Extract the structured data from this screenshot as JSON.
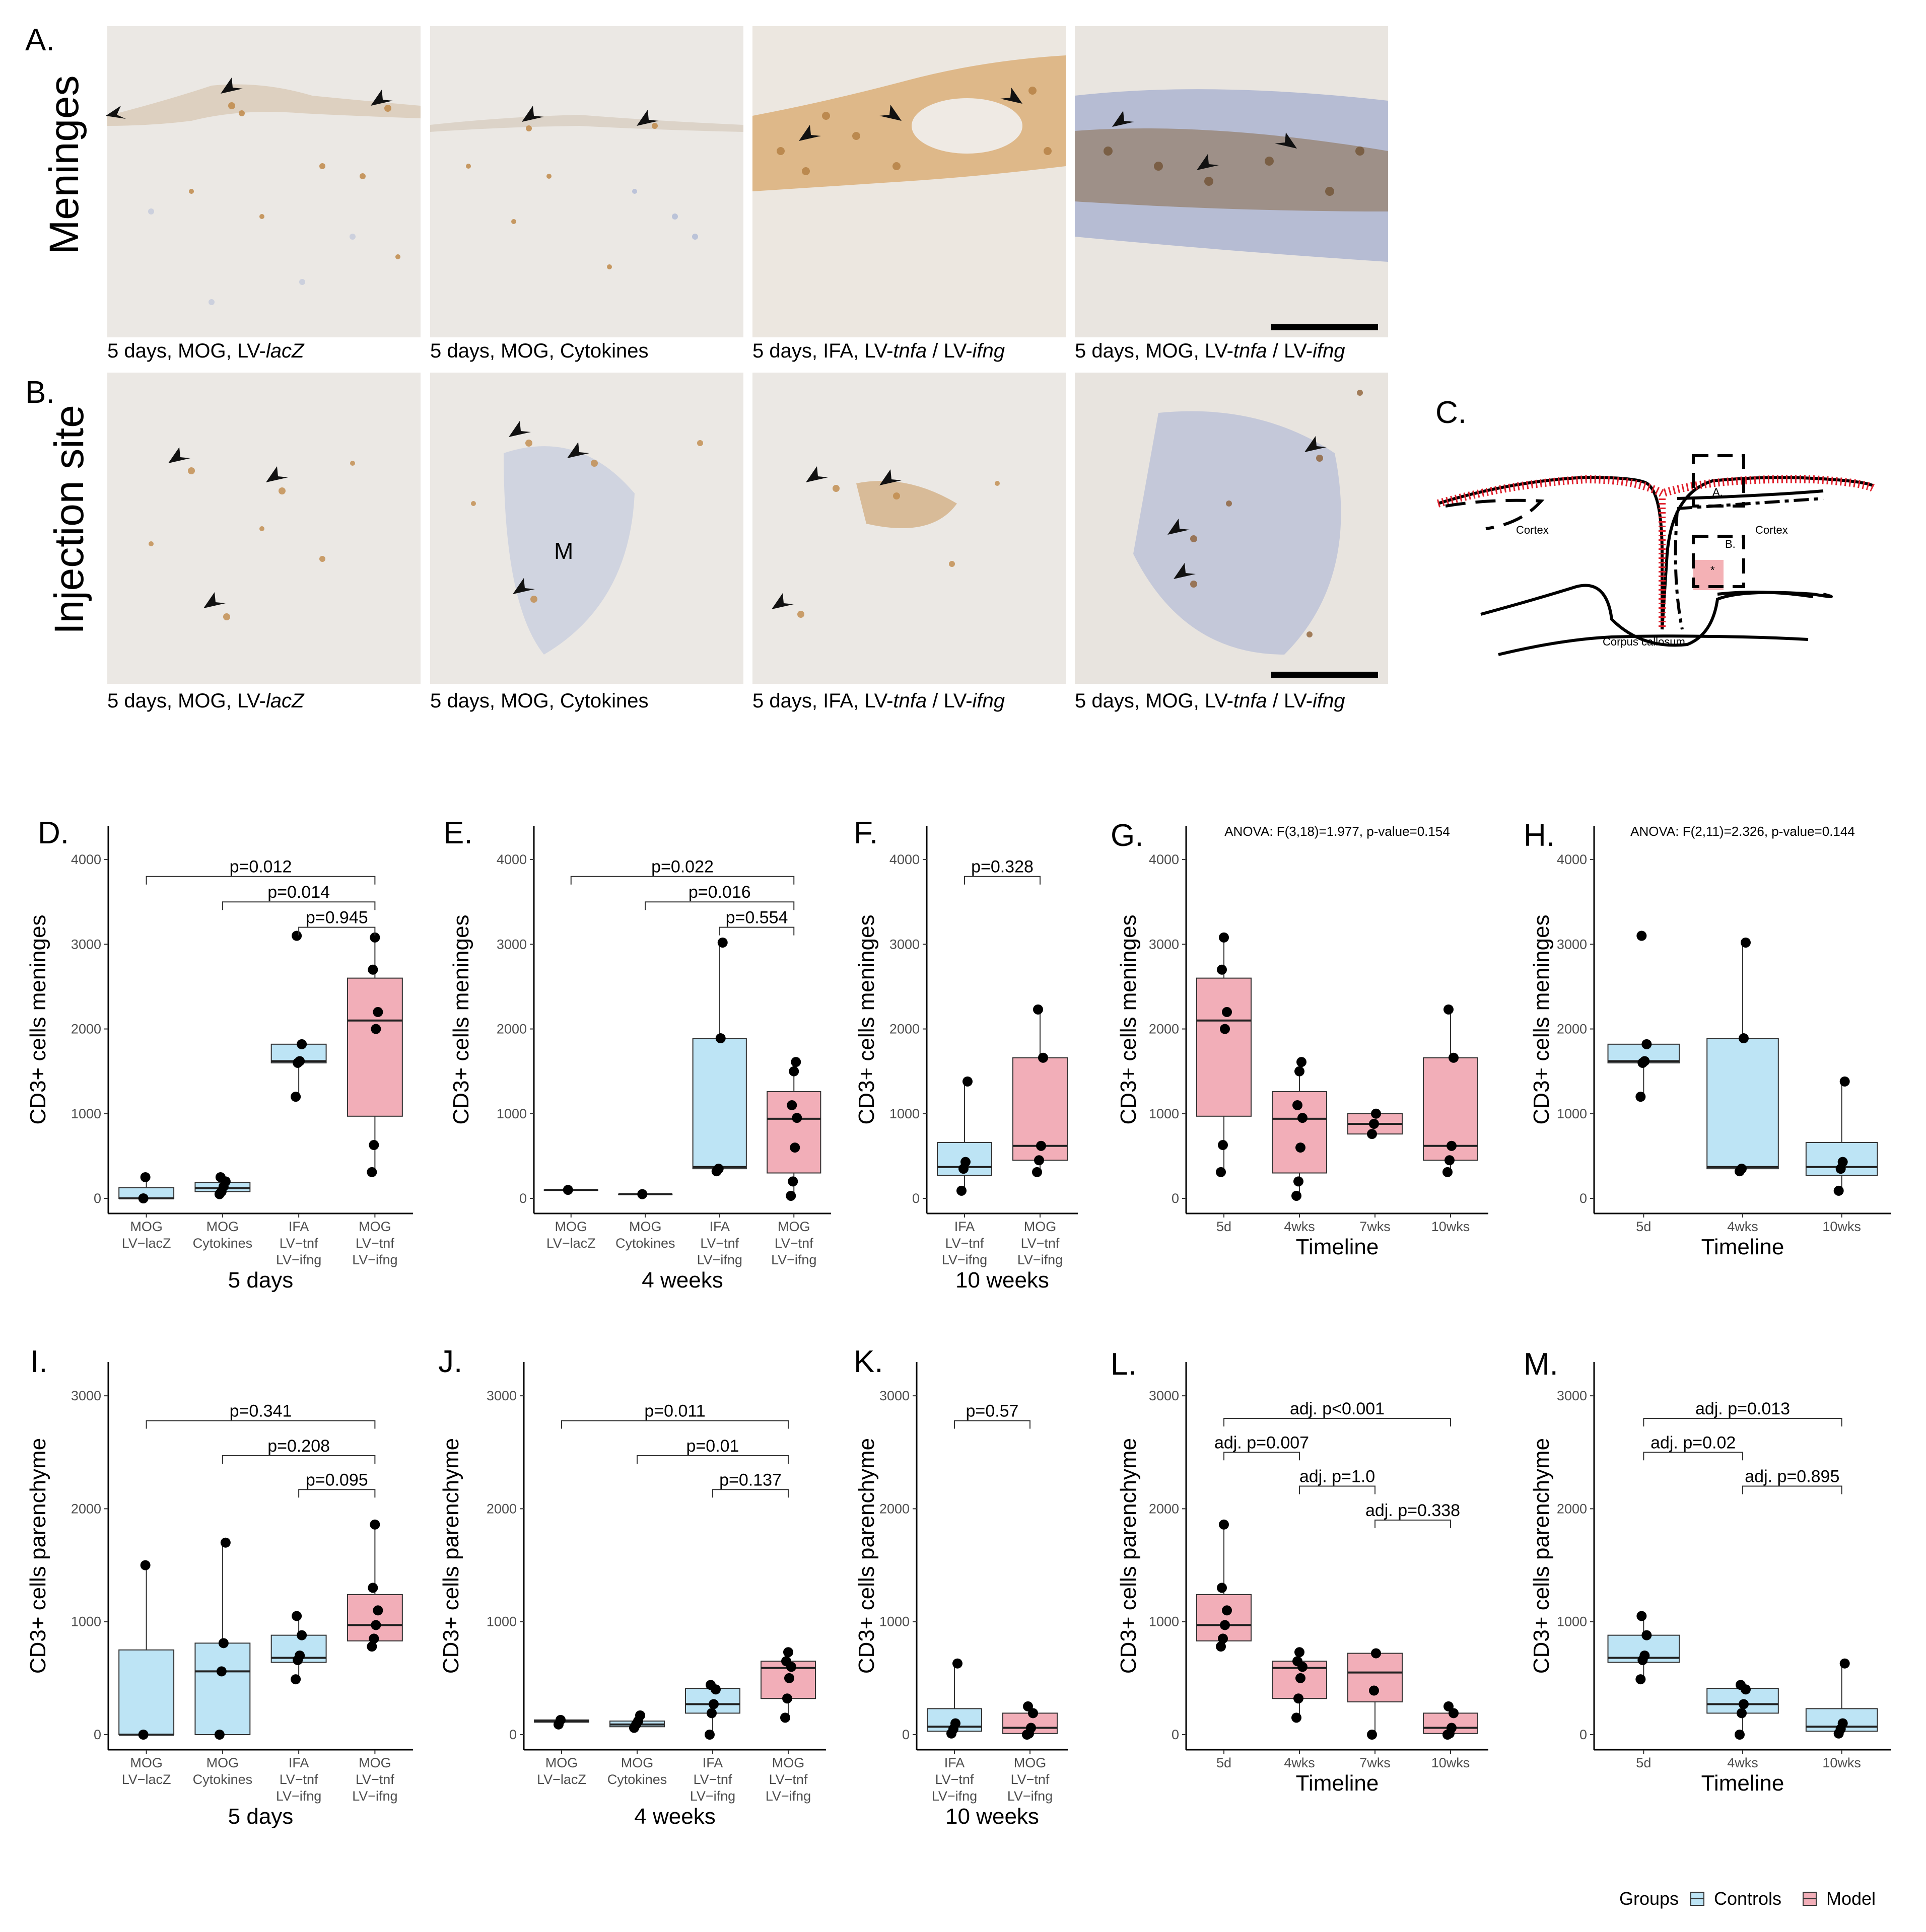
{
  "colors": {
    "controls": "#bde4f5",
    "model": "#f2aeb8",
    "tissue": "#e9e6e2",
    "brown": "#c08a4a",
    "blue": "#8fa3cf"
  },
  "top": {
    "labels": {
      "A": "A.",
      "B": "B.",
      "C": "C."
    },
    "row_labels": {
      "meninges": "Meninges",
      "injection": "Injection site"
    },
    "captions": [
      [
        "5 days, MOG, LV-",
        "lacZ",
        ""
      ],
      [
        "5 days, MOG, Cytokines",
        "",
        ""
      ],
      [
        "5 days, IFA, LV-",
        "tnfa",
        " / LV-",
        "ifng"
      ],
      [
        "5 days, MOG, LV-",
        "tnfa",
        " / LV-",
        "ifng"
      ]
    ],
    "micro_M": "M",
    "diagram": {
      "cortex1": "Cortex",
      "cortex2": "Cortex",
      "cc": "Corpus callosum",
      "boxA": "A.",
      "boxB": "B.",
      "star": "*"
    }
  },
  "legend": {
    "title": "Groups",
    "items": [
      {
        "name": "Controls"
      },
      {
        "name": "Model"
      }
    ]
  },
  "chart_data": [
    {
      "id": "D",
      "label": "D.",
      "type": "box",
      "ylabel": "CD3+ cells meninges",
      "ylim": [
        0,
        4000
      ],
      "yticks": [
        0,
        1000,
        2000,
        3000,
        4000
      ],
      "xtitle": "5 days",
      "categories": [
        {
          "lines": [
            "MOG",
            "LV−lacZ"
          ],
          "group": "Controls",
          "stats": [
            0,
            0,
            0,
            125,
            250
          ],
          "points": [
            0,
            250
          ]
        },
        {
          "lines": [
            "MOG",
            "Cytokines"
          ],
          "group": "Controls",
          "stats": [
            50,
            80,
            120,
            190,
            250
          ],
          "points": [
            50,
            80,
            140,
            200,
            250
          ]
        },
        {
          "lines": [
            "IFA",
            "LV−tnf",
            "LV−ifng"
          ],
          "group": "Controls",
          "stats": [
            1200,
            1600,
            1620,
            1820,
            1820
          ],
          "points": [
            1200,
            1600,
            1620,
            1820,
            3100
          ]
        },
        {
          "lines": [
            "MOG",
            "LV−tnf",
            "LV−ifng"
          ],
          "group": "Model",
          "stats": [
            310,
            970,
            2100,
            2600,
            3080
          ],
          "points": [
            310,
            630,
            2000,
            2200,
            2700,
            3080
          ]
        }
      ],
      "comparisons": [
        {
          "from": 0,
          "to": 3,
          "text": "p=0.012",
          "y": 3800
        },
        {
          "from": 1,
          "to": 3,
          "text": "p=0.014",
          "y": 3500
        },
        {
          "from": 2,
          "to": 3,
          "text": "p=0.945",
          "y": 3200
        }
      ]
    },
    {
      "id": "E",
      "label": "E.",
      "type": "box",
      "ylabel": "CD3+ cells meninges",
      "ylim": [
        0,
        4000
      ],
      "yticks": [
        0,
        1000,
        2000,
        3000,
        4000
      ],
      "xtitle": "4 weeks",
      "categories": [
        {
          "lines": [
            "MOG",
            "LV−lacZ"
          ],
          "group": "Controls",
          "stats": [
            100,
            100,
            100,
            100,
            100
          ],
          "points": [
            100
          ]
        },
        {
          "lines": [
            "MOG",
            "Cytokines"
          ],
          "group": "Controls",
          "stats": [
            50,
            50,
            50,
            50,
            50
          ],
          "points": [
            50
          ]
        },
        {
          "lines": [
            "IFA",
            "LV−tnf",
            "LV−ifng"
          ],
          "group": "Controls",
          "stats": [
            320,
            350,
            370,
            1890,
            3020
          ],
          "points": [
            320,
            350,
            1890,
            3020
          ]
        },
        {
          "lines": [
            "MOG",
            "LV−tnf",
            "LV−ifng"
          ],
          "group": "Model",
          "stats": [
            30,
            300,
            940,
            1260,
            1610
          ],
          "points": [
            30,
            200,
            600,
            950,
            1100,
            1500,
            1610
          ]
        }
      ],
      "comparisons": [
        {
          "from": 0,
          "to": 3,
          "text": "p=0.022",
          "y": 3800
        },
        {
          "from": 1,
          "to": 3,
          "text": "p=0.016",
          "y": 3500
        },
        {
          "from": 2,
          "to": 3,
          "text": "p=0.554",
          "y": 3200
        }
      ]
    },
    {
      "id": "F",
      "label": "F.",
      "type": "box",
      "ylabel": "CD3+ cells meninges",
      "ylim": [
        0,
        4000
      ],
      "yticks": [
        0,
        1000,
        2000,
        3000,
        4000
      ],
      "xtitle": "10 weeks",
      "categories": [
        {
          "lines": [
            "IFA",
            "LV−tnf",
            "LV−ifng"
          ],
          "group": "Controls",
          "stats": [
            90,
            270,
            370,
            660,
            1380
          ],
          "points": [
            90,
            350,
            430,
            1380
          ]
        },
        {
          "lines": [
            "MOG",
            "LV−tnf",
            "LV−ifng"
          ],
          "group": "Model",
          "stats": [
            310,
            450,
            620,
            1660,
            2230
          ],
          "points": [
            310,
            450,
            620,
            1660,
            2230
          ]
        }
      ],
      "comparisons": [
        {
          "from": 0,
          "to": 1,
          "text": "p=0.328",
          "y": 3800
        }
      ]
    },
    {
      "id": "G",
      "label": "G.",
      "type": "box",
      "ylabel": "CD3+ cells meninges",
      "ylim": [
        0,
        4000
      ],
      "yticks": [
        0,
        1000,
        2000,
        3000,
        4000
      ],
      "xtitle": "Timeline",
      "annotation": "ANOVA: F(3,18)=1.977, p-value=0.154",
      "categories": [
        {
          "lines": [
            "5d"
          ],
          "group": "Model",
          "stats": [
            310,
            970,
            2100,
            2600,
            3080
          ],
          "points": [
            310,
            630,
            2000,
            2200,
            2700,
            3080
          ]
        },
        {
          "lines": [
            "4wks"
          ],
          "group": "Model",
          "stats": [
            30,
            300,
            940,
            1260,
            1610
          ],
          "points": [
            30,
            200,
            600,
            950,
            1100,
            1500,
            1610
          ]
        },
        {
          "lines": [
            "7wks"
          ],
          "group": "Model",
          "stats": [
            760,
            760,
            880,
            1000,
            1000
          ],
          "points": [
            760,
            880,
            1000
          ]
        },
        {
          "lines": [
            "10wks"
          ],
          "group": "Model",
          "stats": [
            310,
            450,
            620,
            1660,
            2230
          ],
          "points": [
            310,
            450,
            620,
            1660,
            2230
          ]
        }
      ],
      "comparisons": []
    },
    {
      "id": "H",
      "label": "H.",
      "type": "box",
      "ylabel": "CD3+ cells meninges",
      "ylim": [
        0,
        4000
      ],
      "yticks": [
        0,
        1000,
        2000,
        3000,
        4000
      ],
      "xtitle": "Timeline",
      "annotation": "ANOVA: F(2,11)=2.326, p-value=0.144",
      "categories": [
        {
          "lines": [
            "5d"
          ],
          "group": "Controls",
          "stats": [
            1200,
            1600,
            1620,
            1820,
            1820
          ],
          "points": [
            1200,
            1600,
            1620,
            1820,
            3100
          ]
        },
        {
          "lines": [
            "4wks"
          ],
          "group": "Controls",
          "stats": [
            320,
            350,
            370,
            1890,
            3020
          ],
          "points": [
            320,
            350,
            1890,
            3020
          ]
        },
        {
          "lines": [
            "10wks"
          ],
          "group": "Controls",
          "stats": [
            90,
            270,
            370,
            660,
            1380
          ],
          "points": [
            90,
            350,
            430,
            1380
          ]
        }
      ],
      "comparisons": []
    },
    {
      "id": "I",
      "label": "I.",
      "type": "box",
      "ylabel": "CD3+ cells parenchyme",
      "ylim": [
        0,
        3000
      ],
      "yticks": [
        0,
        1000,
        2000,
        3000
      ],
      "xtitle": "5 days",
      "categories": [
        {
          "lines": [
            "MOG",
            "LV−lacZ"
          ],
          "group": "Controls",
          "stats": [
            0,
            0,
            0,
            750,
            1500
          ],
          "points": [
            0,
            1500
          ]
        },
        {
          "lines": [
            "MOG",
            "Cytokines"
          ],
          "group": "Controls",
          "stats": [
            0,
            0,
            560,
            810,
            1700
          ],
          "points": [
            0,
            560,
            810,
            1700
          ]
        },
        {
          "lines": [
            "IFA",
            "LV−tnf",
            "LV−ifng"
          ],
          "group": "Controls",
          "stats": [
            490,
            640,
            680,
            880,
            1050
          ],
          "points": [
            490,
            660,
            700,
            880,
            1050
          ]
        },
        {
          "lines": [
            "MOG",
            "LV−tnf",
            "LV−ifng"
          ],
          "group": "Model",
          "stats": [
            780,
            830,
            970,
            1240,
            1860
          ],
          "points": [
            780,
            850,
            970,
            1100,
            1300,
            1860
          ]
        }
      ],
      "comparisons": [
        {
          "from": 0,
          "to": 3,
          "text": "p=0.341",
          "y": 2780
        },
        {
          "from": 1,
          "to": 3,
          "text": "p=0.208",
          "y": 2470
        },
        {
          "from": 2,
          "to": 3,
          "text": "p=0.095",
          "y": 2170
        }
      ]
    },
    {
      "id": "J",
      "label": "J.",
      "type": "box",
      "ylabel": "CD3+ cells parenchyme",
      "ylim": [
        0,
        3000
      ],
      "yticks": [
        0,
        1000,
        2000,
        3000
      ],
      "xtitle": "4 weeks",
      "categories": [
        {
          "lines": [
            "MOG",
            "LV−lacZ"
          ],
          "group": "Controls",
          "stats": [
            90,
            110,
            120,
            130,
            130
          ],
          "points": [
            90,
            130
          ]
        },
        {
          "lines": [
            "MOG",
            "Cytokines"
          ],
          "group": "Controls",
          "stats": [
            60,
            70,
            90,
            120,
            170
          ],
          "points": [
            60,
            90,
            120,
            170
          ]
        },
        {
          "lines": [
            "IFA",
            "LV−tnf",
            "LV−ifng"
          ],
          "group": "Controls",
          "stats": [
            0,
            190,
            270,
            410,
            440
          ],
          "points": [
            0,
            190,
            270,
            400,
            440
          ]
        },
        {
          "lines": [
            "MOG",
            "LV−tnf",
            "LV−ifng"
          ],
          "group": "Model",
          "stats": [
            150,
            320,
            590,
            650,
            730
          ],
          "points": [
            150,
            320,
            500,
            600,
            650,
            730
          ]
        }
      ],
      "comparisons": [
        {
          "from": 0,
          "to": 3,
          "text": "p=0.011",
          "y": 2780
        },
        {
          "from": 1,
          "to": 3,
          "text": "p=0.01",
          "y": 2470
        },
        {
          "from": 2,
          "to": 3,
          "text": "p=0.137",
          "y": 2170
        }
      ]
    },
    {
      "id": "K",
      "label": "K.",
      "type": "box",
      "ylabel": "CD3+ cells parenchyme",
      "ylim": [
        0,
        3000
      ],
      "yticks": [
        0,
        1000,
        2000,
        3000
      ],
      "xtitle": "10 weeks",
      "categories": [
        {
          "lines": [
            "IFA",
            "LV−tnf",
            "LV−ifng"
          ],
          "group": "Controls",
          "stats": [
            10,
            30,
            70,
            230,
            630
          ],
          "points": [
            10,
            50,
            100,
            630
          ]
        },
        {
          "lines": [
            "MOG",
            "LV−tnf",
            "LV−ifng"
          ],
          "group": "Model",
          "stats": [
            0,
            10,
            60,
            190,
            250
          ],
          "points": [
            0,
            10,
            60,
            190,
            250
          ]
        }
      ],
      "comparisons": [
        {
          "from": 0,
          "to": 1,
          "text": "p=0.57",
          "y": 2780
        }
      ]
    },
    {
      "id": "L",
      "label": "L.",
      "type": "box",
      "ylabel": "CD3+ cells parenchyme",
      "ylim": [
        0,
        3000
      ],
      "yticks": [
        0,
        1000,
        2000,
        3000
      ],
      "xtitle": "Timeline",
      "categories": [
        {
          "lines": [
            "5d"
          ],
          "group": "Model",
          "stats": [
            780,
            830,
            970,
            1240,
            1860
          ],
          "points": [
            780,
            850,
            970,
            1100,
            1300,
            1860
          ]
        },
        {
          "lines": [
            "4wks"
          ],
          "group": "Model",
          "stats": [
            150,
            320,
            590,
            650,
            730
          ],
          "points": [
            150,
            320,
            500,
            600,
            650,
            730
          ]
        },
        {
          "lines": [
            "7wks"
          ],
          "group": "Model",
          "stats": [
            0,
            290,
            550,
            720,
            720
          ],
          "points": [
            0,
            390,
            720
          ]
        },
        {
          "lines": [
            "10wks"
          ],
          "group": "Model",
          "stats": [
            0,
            10,
            60,
            190,
            250
          ],
          "points": [
            0,
            10,
            60,
            190,
            250
          ]
        }
      ],
      "comparisons": [
        {
          "from": 0,
          "to": 3,
          "text": "adj. p<0.001",
          "y": 2800
        },
        {
          "from": 0,
          "to": 1,
          "text": "adj. p=0.007",
          "y": 2500
        },
        {
          "from": 1,
          "to": 2,
          "text": "adj. p=1.0",
          "y": 2200
        },
        {
          "from": 2,
          "to": 3,
          "text": "adj. p=0.338",
          "y": 1900
        }
      ]
    },
    {
      "id": "M",
      "label": "M.",
      "type": "box",
      "ylabel": "CD3+ cells parenchyme",
      "ylim": [
        0,
        3000
      ],
      "yticks": [
        0,
        1000,
        2000,
        3000
      ],
      "xtitle": "Timeline",
      "categories": [
        {
          "lines": [
            "5d"
          ],
          "group": "Controls",
          "stats": [
            490,
            640,
            680,
            880,
            1050
          ],
          "points": [
            490,
            660,
            700,
            880,
            1050
          ]
        },
        {
          "lines": [
            "4wks"
          ],
          "group": "Controls",
          "stats": [
            0,
            190,
            270,
            410,
            440
          ],
          "points": [
            0,
            190,
            270,
            400,
            440
          ]
        },
        {
          "lines": [
            "10wks"
          ],
          "group": "Controls",
          "stats": [
            10,
            30,
            70,
            230,
            630
          ],
          "points": [
            10,
            50,
            100,
            630
          ]
        }
      ],
      "comparisons": [
        {
          "from": 0,
          "to": 2,
          "text": "adj. p=0.013",
          "y": 2800
        },
        {
          "from": 0,
          "to": 1,
          "text": "adj. p=0.02",
          "y": 2500
        },
        {
          "from": 1,
          "to": 2,
          "text": "adj. p=0.895",
          "y": 2200
        }
      ]
    }
  ]
}
